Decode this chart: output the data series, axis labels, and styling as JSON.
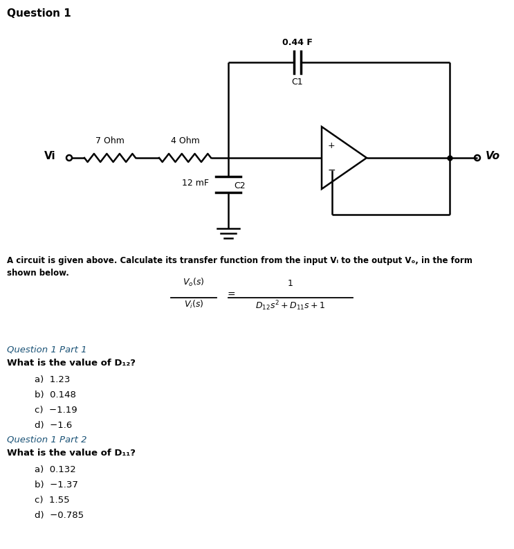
{
  "title": "Question 1",
  "bg_color": "#ffffff",
  "R1_label": "7 Ohm",
  "R2_label": "4 Ohm",
  "C1_label": "0.44 F",
  "C1_sublabel": "C1",
  "C2_label": "12 mF",
  "C2_sublabel": "C2",
  "Vi_label": "Vi",
  "Vo_label": "Vo",
  "description_line1": "A circuit is given above. Calculate its transfer function from the input Vᵢ to the output Vₒ, in the form",
  "description_line2": "shown below.",
  "part1_title": "Question 1 Part 1",
  "part1_question": "What is the value of D₁₂?",
  "part1_options": [
    "a)  1.23",
    "b)  0.148",
    "c)  −1.19",
    "d)  −1.6"
  ],
  "part2_title": "Question 1 Part 2",
  "part2_question": "What is the value of D₁₁?",
  "part2_options": [
    "a)  0.132",
    "b)  −1.37",
    "c)  1.55",
    "d)  −0.785"
  ],
  "text_color": "#000000",
  "highlight_color": "#1a5276"
}
